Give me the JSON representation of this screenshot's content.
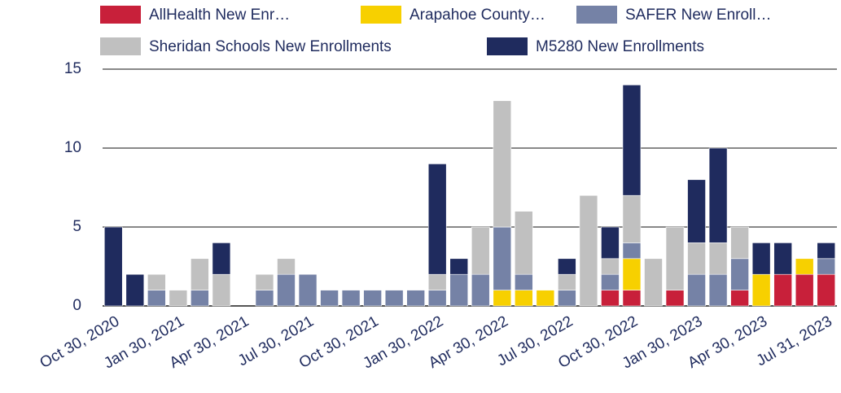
{
  "chart_data": {
    "type": "stacked_bar",
    "categories": [
      "Oct 30, 2020",
      null,
      null,
      "Jan 30, 2021",
      null,
      null,
      "Apr 30, 2021",
      null,
      null,
      "Jul 30, 2021",
      null,
      null,
      "Oct 30, 2021",
      null,
      null,
      "Jan 30, 2022",
      null,
      null,
      "Apr 30, 2022",
      null,
      null,
      "Jul 30, 2022",
      null,
      null,
      "Oct 30, 2022",
      null,
      null,
      "Jan 30, 2023",
      null,
      null,
      "Apr 30, 2023",
      null,
      null,
      "Jul 31, 2023"
    ],
    "series": [
      {
        "name": "AllHealth New Enr…",
        "color": "#c8203a",
        "values": [
          0,
          0,
          0,
          0,
          0,
          0,
          0,
          0,
          0,
          0,
          0,
          0,
          0,
          0,
          0,
          0,
          0,
          0,
          0,
          0,
          0,
          0,
          0,
          1,
          1,
          0,
          1,
          0,
          0,
          1,
          0,
          2,
          2,
          2
        ]
      },
      {
        "name": "Arapahoe County…",
        "color": "#f7d000",
        "values": [
          0,
          0,
          0,
          0,
          0,
          0,
          0,
          0,
          0,
          0,
          0,
          0,
          0,
          0,
          0,
          0,
          0,
          0,
          1,
          1,
          1,
          0,
          0,
          0,
          2,
          0,
          0,
          0,
          0,
          0,
          2,
          0,
          1,
          0
        ]
      },
      {
        "name": "SAFER New Enroll…",
        "color": "#7582a6",
        "values": [
          0,
          0,
          1,
          0,
          1,
          0,
          0,
          1,
          2,
          2,
          1,
          1,
          1,
          1,
          1,
          1,
          2,
          2,
          4,
          1,
          0,
          1,
          0,
          1,
          1,
          0,
          0,
          2,
          2,
          2,
          0,
          0,
          0,
          1
        ]
      },
      {
        "name": "Sheridan Schools New Enrollments",
        "color": "#c0c0c0",
        "values": [
          0,
          0,
          1,
          1,
          2,
          2,
          0,
          1,
          1,
          0,
          0,
          0,
          0,
          0,
          0,
          1,
          0,
          3,
          8,
          4,
          0,
          1,
          7,
          1,
          3,
          3,
          4,
          2,
          2,
          2,
          0,
          0,
          0,
          0
        ]
      },
      {
        "name": "M5280 New Enrollments",
        "color": "#1f2b5e",
        "values": [
          5,
          2,
          0,
          0,
          0,
          2,
          0,
          0,
          0,
          0,
          0,
          0,
          0,
          0,
          0,
          7,
          1,
          0,
          0,
          0,
          0,
          1,
          0,
          2,
          7,
          0,
          0,
          4,
          6,
          0,
          2,
          2,
          0,
          1
        ]
      }
    ],
    "ylim": [
      0,
      15
    ],
    "yticks": [
      0,
      5,
      10,
      15
    ],
    "grid": true
  }
}
